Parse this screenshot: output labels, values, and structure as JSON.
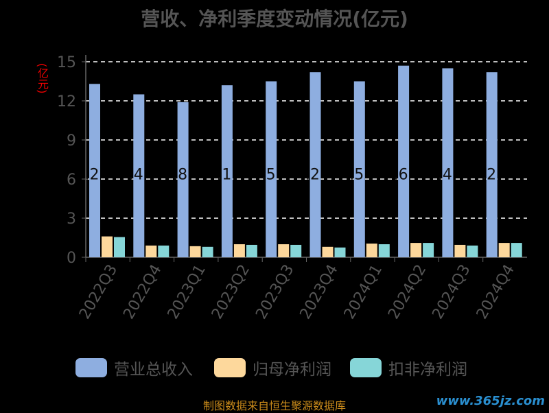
{
  "chart_data": {
    "type": "bar",
    "title": "营收、净利季度变动情况(亿元)",
    "ylabel": "(亿元)",
    "xlabel": "",
    "ylim": [
      0,
      15
    ],
    "yticks": [
      0,
      3,
      6,
      9,
      12,
      15
    ],
    "grid": true,
    "legend_position": "bottom",
    "categories": [
      "2022Q3",
      "2022Q4",
      "2023Q1",
      "2023Q2",
      "2023Q3",
      "2023Q4",
      "2024Q1",
      "2024Q2",
      "2024Q3",
      "2024Q4"
    ],
    "series": [
      {
        "name": "营业总收入",
        "color": "#8eaee0",
        "values": [
          13.3,
          12.5,
          11.9,
          13.2,
          13.5,
          14.2,
          13.5,
          14.7,
          14.5,
          14.2
        ]
      },
      {
        "name": "归母净利润",
        "color": "#fdd89c",
        "values": [
          1.6,
          0.9,
          0.85,
          1.0,
          1.0,
          0.8,
          1.05,
          1.1,
          0.95,
          1.1
        ]
      },
      {
        "name": "扣非净利润",
        "color": "#86d6d8",
        "values": [
          1.55,
          0.9,
          0.8,
          0.95,
          0.95,
          0.75,
          1.0,
          1.1,
          0.9,
          1.1
        ]
      }
    ],
    "data_labels": [
      ".2",
      ".4",
      ".8",
      ".1",
      ".5",
      ".2",
      ".5",
      ".6",
      ".4",
      ".2"
    ]
  },
  "footer": {
    "source": "制图数据来自恒生聚源数据库",
    "watermark": "www.365jz.com"
  }
}
